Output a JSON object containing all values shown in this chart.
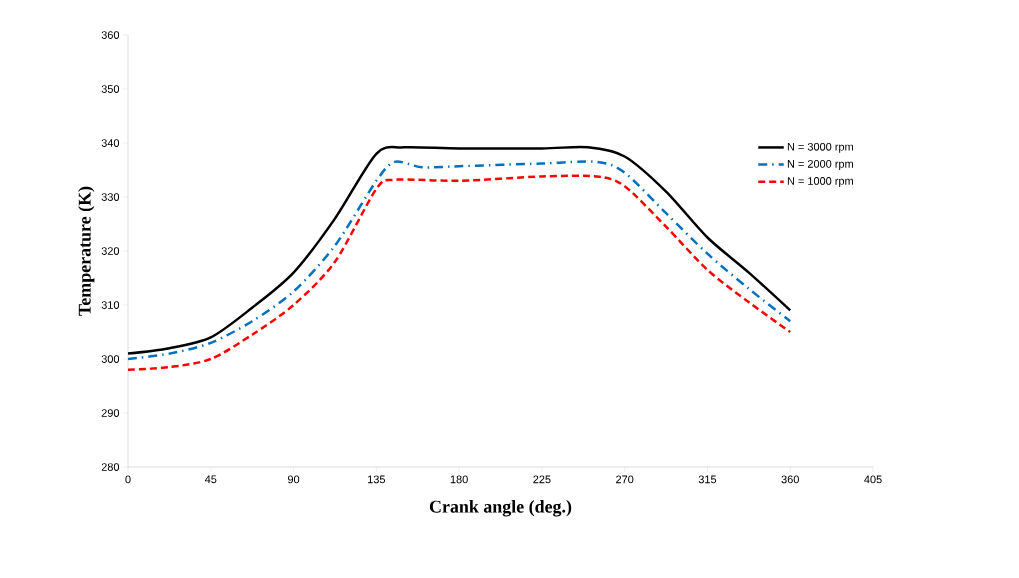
{
  "chart_data": {
    "type": "line",
    "xlabel": "Crank angle (deg.)",
    "ylabel": "Temperature (K)",
    "xlim": [
      0,
      405
    ],
    "ylim": [
      280,
      360
    ],
    "xticks": [
      0,
      45,
      90,
      135,
      180,
      225,
      270,
      315,
      360,
      405
    ],
    "yticks": [
      280,
      290,
      300,
      310,
      320,
      330,
      340,
      350,
      360
    ],
    "grid": false,
    "legend": "top right",
    "series": [
      {
        "name": "N = 3000 rpm",
        "color": "#000000",
        "line_style": "solid",
        "x": [
          0,
          22.5,
          45,
          67.5,
          90,
          112.5,
          135,
          150,
          180,
          225,
          250,
          270,
          292.5,
          315,
          337.5,
          360
        ],
        "values": [
          301,
          302,
          304,
          309.5,
          316,
          326,
          338,
          339.2,
          339,
          339,
          339.2,
          337.5,
          331,
          322.5,
          316,
          309
        ]
      },
      {
        "name": "N = 2000 rpm",
        "color": "#0070c0",
        "line_style": "dashdot",
        "x": [
          0,
          22.5,
          45,
          67.5,
          90,
          112.5,
          135,
          145,
          160,
          180,
          225,
          255,
          270,
          292.5,
          315,
          337.5,
          360
        ],
        "values": [
          300,
          301,
          303,
          307,
          312.5,
          321,
          333,
          336.5,
          335.5,
          335.7,
          336.2,
          336.5,
          334.5,
          327,
          319.5,
          313,
          307
        ]
      },
      {
        "name": "N = 1000 rpm",
        "color": "#ff0000",
        "line_style": "dashed",
        "x": [
          0,
          22.5,
          45,
          67.5,
          90,
          112.5,
          135,
          145,
          180,
          225,
          255,
          270,
          292.5,
          315,
          337.5,
          360
        ],
        "values": [
          298,
          298.5,
          300,
          304.5,
          310,
          318,
          331.5,
          333.2,
          333,
          333.8,
          333.8,
          332,
          324.5,
          316.5,
          310.5,
          305
        ]
      }
    ]
  }
}
